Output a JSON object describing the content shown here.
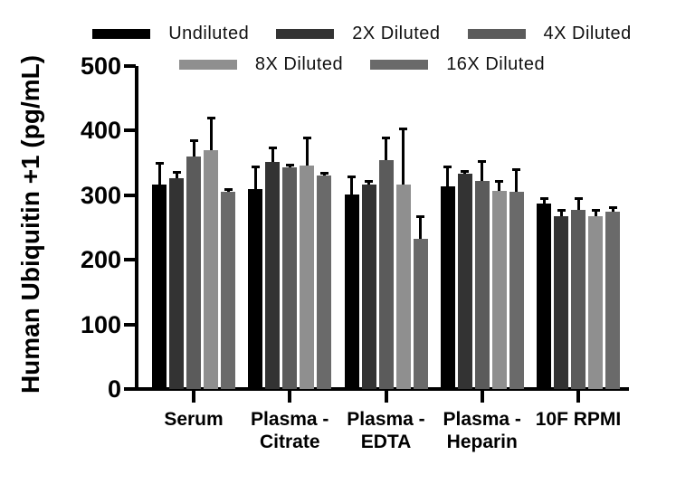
{
  "chart_data": {
    "type": "bar",
    "title": "",
    "xlabel": "",
    "ylabel": "Human Ubiquitin +1 (pg/mL)",
    "ylim": [
      0,
      500
    ],
    "yticks": [
      0,
      100,
      200,
      300,
      400,
      500
    ],
    "grid": false,
    "legend_position": "top-center",
    "error_bars": "upper-only",
    "categories": [
      "Serum",
      "Plasma -\nCitrate",
      "Plasma -\nEDTA",
      "Plasma -\nHeparin",
      "10F RPMI"
    ],
    "series": [
      {
        "name": "Undiluted",
        "color": "#000000",
        "values": [
          316,
          309,
          301,
          314,
          287
        ],
        "errors": [
          34,
          36,
          28,
          30,
          9
        ]
      },
      {
        "name": "2X Diluted",
        "color": "#333333",
        "values": [
          327,
          351,
          316,
          333,
          268
        ],
        "errors": [
          9,
          23,
          6,
          5,
          10
        ]
      },
      {
        "name": "4X Diluted",
        "color": "#5b5b5b",
        "values": [
          360,
          343,
          354,
          322,
          278
        ],
        "errors": [
          25,
          4,
          35,
          31,
          17
        ]
      },
      {
        "name": "8X Diluted",
        "color": "#8f8f8f",
        "values": [
          370,
          346,
          317,
          307,
          268
        ],
        "errors": [
          50,
          44,
          87,
          15,
          9
        ]
      },
      {
        "name": "16X Diluted",
        "color": "#6a6a6a",
        "values": [
          306,
          331,
          233,
          306,
          274
        ],
        "errors": [
          3,
          4,
          34,
          35,
          7
        ]
      }
    ],
    "legend_rows": [
      [
        0,
        1,
        2
      ],
      [
        3,
        4
      ]
    ]
  }
}
